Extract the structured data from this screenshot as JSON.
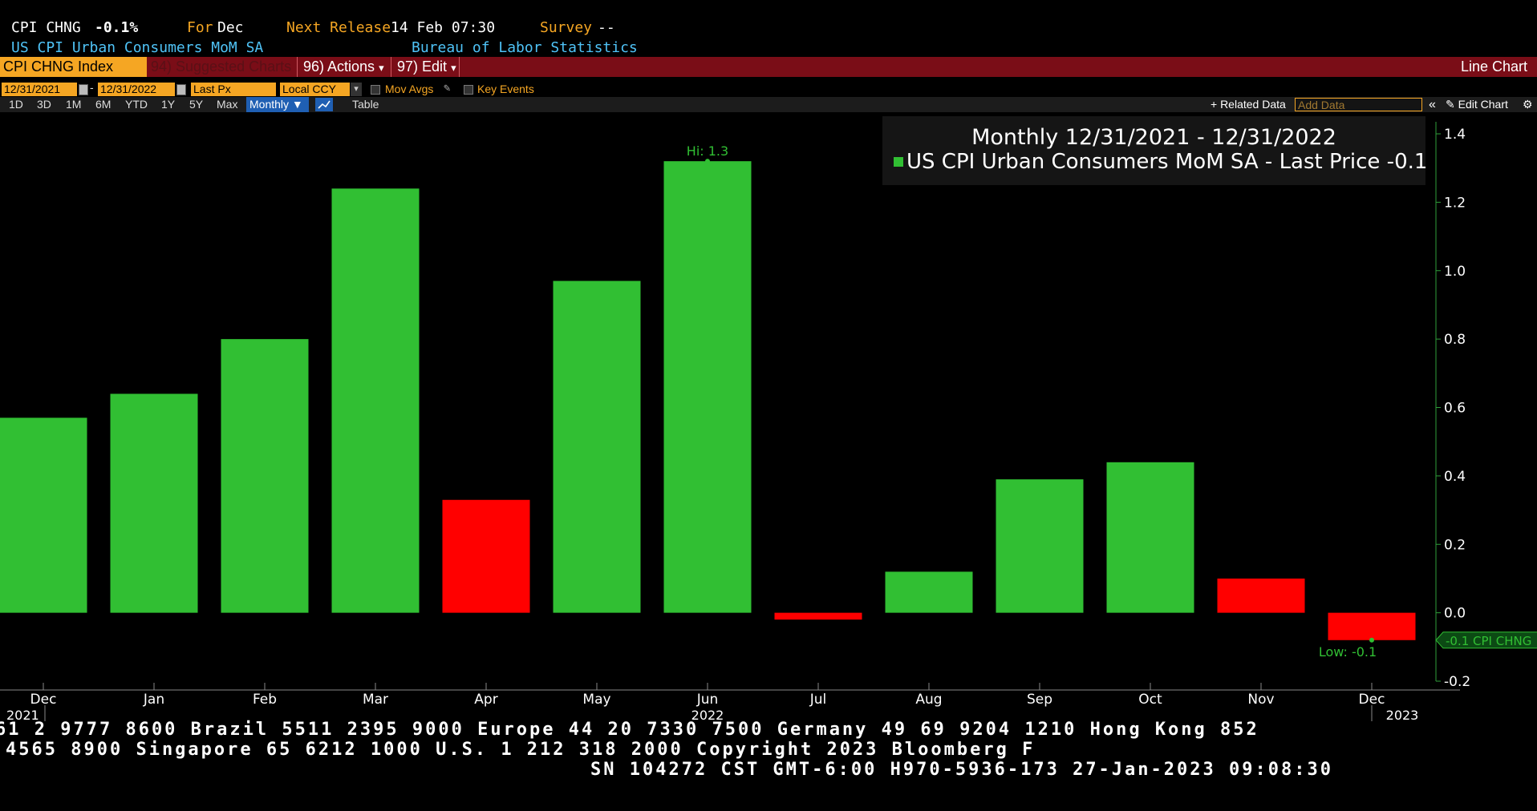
{
  "header": {
    "ticker": "CPI CHNG",
    "value": "-0.1%",
    "for_label": "For",
    "for_value": "Dec",
    "next_release_label": "Next Release",
    "next_release_value": "14 Feb 07:30",
    "survey_label": "Survey",
    "survey_value": "--",
    "name": "US CPI Urban Consumers MoM SA",
    "source": "Bureau of Labor Statistics"
  },
  "toolbar": {
    "security": "CPI CHNG Index",
    "suggested": "94) Suggested Charts",
    "actions": "96) Actions",
    "actions_caret": "▾",
    "edit": "97) Edit",
    "edit_caret": "▾",
    "chart_type": "Line Chart"
  },
  "controls": {
    "start_date": "12/31/2021",
    "dash": "-",
    "end_date": "12/31/2022",
    "price_field": "Last Px",
    "currency": "Local CCY",
    "currency_caret": "▾",
    "mov_avgs": "Mov Avgs",
    "key_events": "Key Events"
  },
  "period_bar": {
    "buttons": [
      "1D",
      "3D",
      "1M",
      "6M",
      "YTD",
      "1Y",
      "5Y",
      "Max"
    ],
    "frequency": "Monthly ▼",
    "table": "Table",
    "related_data": "+ Related Data",
    "add_data_placeholder": "Add Data",
    "collapse": "«",
    "edit_chart": "✎ Edit Chart",
    "settings": "⚙"
  },
  "chart_data": {
    "type": "bar",
    "title": "Monthly 12/31/2021 - 12/31/2022",
    "series": [
      {
        "name": "US CPI Urban Consumers MoM SA - Last Price -0.1",
        "values": [
          0.57,
          0.64,
          0.8,
          1.24,
          0.33,
          0.97,
          1.32,
          -0.02,
          0.12,
          0.39,
          0.44,
          0.1,
          -0.08
        ]
      }
    ],
    "categories": [
      "Dec",
      "Jan",
      "Feb",
      "Mar",
      "Apr",
      "May",
      "Jun",
      "Jul",
      "Aug",
      "Sep",
      "Oct",
      "Nov",
      "Dec"
    ],
    "bar_colors": [
      "#31bf33",
      "#31bf33",
      "#31bf33",
      "#31bf33",
      "#ff0000",
      "#31bf33",
      "#31bf33",
      "#ff0000",
      "#31bf33",
      "#31bf33",
      "#31bf33",
      "#ff0000",
      "#ff0000"
    ],
    "year_labels": [
      "2021",
      "2022",
      "2023"
    ],
    "ylim": [
      -0.2,
      1.4
    ],
    "yticks": [
      "1.4",
      "1.2",
      "1.0",
      "0.8",
      "0.6",
      "0.4",
      "0.2",
      "0.0",
      "-0.2"
    ],
    "hi_label": "Hi: 1.3",
    "low_label": "Low: -0.1",
    "last_value_tag": "-0.1 CPI CHNG",
    "colors": {
      "up": "#31bf33",
      "down": "#ff0000",
      "axis": "#2f9e3a",
      "label": "#31bf33"
    }
  },
  "footer": {
    "line1": "61 2 9777 8600 Brazil 5511 2395 9000 Europe 44 20 7330 7500 Germany 49 69 9204 1210 Hong Kong 852",
    "line2": "4565 8900      Singapore 65 6212 1000      U.S. 1 212 318 2000        Copyright 2023 Bloomberg F",
    "line3": "SN 104272 CST  GMT-6:00 H970-5936-173 27-Jan-2023 09:08:30"
  }
}
